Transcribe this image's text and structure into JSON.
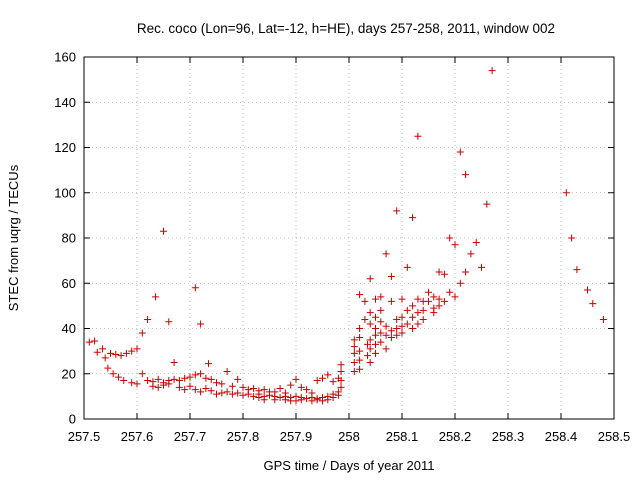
{
  "chart_data": {
    "type": "scatter",
    "title": "Rec. coco (Lon=96, Lat=-12, h=HE), days 257-258, 2011, window 002",
    "xlabel": "GPS time / Days of year 2011",
    "ylabel": "STEC from uqrg / TECUs",
    "xlim": [
      257.5,
      258.5
    ],
    "ylim": [
      0,
      160
    ],
    "xticks": [
      "257.5",
      "257.6",
      "257.7",
      "257.8",
      "257.9",
      "258",
      "258.1",
      "258.2",
      "258.3",
      "258.4",
      "258.5"
    ],
    "yticks": [
      "0",
      "20",
      "40",
      "60",
      "80",
      "100",
      "120",
      "140",
      "160"
    ],
    "marker": "plus",
    "color": "#cc0000",
    "grid": true,
    "points": [
      [
        257.51,
        34
      ],
      [
        257.52,
        34.5
      ],
      [
        257.525,
        29.5
      ],
      [
        257.535,
        31
      ],
      [
        257.54,
        27
      ],
      [
        257.55,
        29
      ],
      [
        257.56,
        28.5
      ],
      [
        257.57,
        28
      ],
      [
        257.58,
        29
      ],
      [
        257.59,
        30
      ],
      [
        257.6,
        31
      ],
      [
        257.61,
        38
      ],
      [
        257.62,
        44
      ],
      [
        257.635,
        54
      ],
      [
        257.65,
        83
      ],
      [
        257.66,
        43
      ],
      [
        257.67,
        25
      ],
      [
        257.72,
        42
      ],
      [
        257.71,
        58
      ],
      [
        257.735,
        24.5
      ],
      [
        257.545,
        22.5
      ],
      [
        257.555,
        20
      ],
      [
        257.565,
        18.5
      ],
      [
        257.575,
        17
      ],
      [
        257.59,
        16
      ],
      [
        257.6,
        15.5
      ],
      [
        257.61,
        20
      ],
      [
        257.62,
        17
      ],
      [
        257.63,
        16.5
      ],
      [
        257.64,
        17.5
      ],
      [
        257.65,
        16
      ],
      [
        257.66,
        17
      ],
      [
        257.67,
        17.5
      ],
      [
        257.68,
        17
      ],
      [
        257.69,
        18
      ],
      [
        257.7,
        18.5
      ],
      [
        257.71,
        19.5
      ],
      [
        257.72,
        20
      ],
      [
        257.73,
        18
      ],
      [
        257.74,
        17.5
      ],
      [
        257.75,
        16
      ],
      [
        257.76,
        15.5
      ],
      [
        257.77,
        21
      ],
      [
        257.78,
        14.5
      ],
      [
        257.79,
        17.5
      ],
      [
        257.8,
        14
      ],
      [
        257.81,
        13
      ],
      [
        257.82,
        13.5
      ],
      [
        257.83,
        12.5
      ],
      [
        257.84,
        13
      ],
      [
        257.85,
        12
      ],
      [
        257.86,
        12
      ],
      [
        257.87,
        13.5
      ],
      [
        257.88,
        11.5
      ],
      [
        257.89,
        15
      ],
      [
        257.9,
        17.5
      ],
      [
        257.91,
        14
      ],
      [
        257.92,
        13
      ],
      [
        257.93,
        11.5
      ],
      [
        257.94,
        17
      ],
      [
        257.95,
        18
      ],
      [
        257.96,
        19.5
      ],
      [
        257.97,
        16.5
      ],
      [
        257.98,
        18
      ],
      [
        257.63,
        14.5
      ],
      [
        257.64,
        14
      ],
      [
        257.65,
        15
      ],
      [
        257.66,
        15.5
      ],
      [
        257.68,
        14
      ],
      [
        257.69,
        13
      ],
      [
        257.7,
        14.5
      ],
      [
        257.71,
        13
      ],
      [
        257.72,
        12
      ],
      [
        257.73,
        13.5
      ],
      [
        257.74,
        12.5
      ],
      [
        257.75,
        11
      ],
      [
        257.76,
        11.5
      ],
      [
        257.77,
        12
      ],
      [
        257.78,
        11
      ],
      [
        257.79,
        11.5
      ],
      [
        257.8,
        10.5
      ],
      [
        257.81,
        11
      ],
      [
        257.82,
        10
      ],
      [
        257.83,
        11
      ],
      [
        257.84,
        10
      ],
      [
        257.85,
        10.5
      ],
      [
        257.86,
        10
      ],
      [
        257.87,
        9.5
      ],
      [
        257.88,
        10
      ],
      [
        257.89,
        9.5
      ],
      [
        257.9,
        10
      ],
      [
        257.91,
        9.5
      ],
      [
        257.92,
        9
      ],
      [
        257.93,
        9.5
      ],
      [
        257.94,
        9
      ],
      [
        257.95,
        9.5
      ],
      [
        257.96,
        10
      ],
      [
        257.97,
        11
      ],
      [
        257.98,
        12
      ],
      [
        257.83,
        9.5
      ],
      [
        257.84,
        8.5
      ],
      [
        257.86,
        8.5
      ],
      [
        257.88,
        8.5
      ],
      [
        257.89,
        8
      ],
      [
        257.9,
        8
      ],
      [
        257.91,
        8.5
      ],
      [
        257.93,
        8
      ],
      [
        257.94,
        8.5
      ],
      [
        257.95,
        8
      ],
      [
        257.96,
        8.5
      ],
      [
        257.97,
        9.5
      ],
      [
        257.98,
        10.5
      ],
      [
        257.985,
        14
      ],
      [
        257.985,
        17
      ],
      [
        257.985,
        21
      ],
      [
        257.985,
        24
      ],
      [
        258.01,
        35
      ],
      [
        258.01,
        32
      ],
      [
        258.01,
        29
      ],
      [
        258.01,
        25
      ],
      [
        258.01,
        21
      ],
      [
        258.02,
        55
      ],
      [
        258.02,
        40
      ],
      [
        258.02,
        36
      ],
      [
        258.02,
        30
      ],
      [
        258.02,
        26
      ],
      [
        258.02,
        22
      ],
      [
        258.03,
        44
      ],
      [
        258.03,
        52
      ],
      [
        258.035,
        33
      ],
      [
        258.035,
        28
      ],
      [
        258.04,
        62
      ],
      [
        258.04,
        47
      ],
      [
        258.04,
        42
      ],
      [
        258.04,
        35
      ],
      [
        258.04,
        31
      ],
      [
        258.04,
        25
      ],
      [
        258.05,
        53
      ],
      [
        258.05,
        45
      ],
      [
        258.05,
        40
      ],
      [
        258.05,
        37
      ],
      [
        258.05,
        33
      ],
      [
        258.05,
        29
      ],
      [
        258.06,
        54
      ],
      [
        258.06,
        48
      ],
      [
        258.06,
        43
      ],
      [
        258.06,
        38
      ],
      [
        258.06,
        34
      ],
      [
        258.07,
        73
      ],
      [
        258.07,
        41
      ],
      [
        258.07,
        37
      ],
      [
        258.07,
        31
      ],
      [
        258.08,
        63
      ],
      [
        258.08,
        52
      ],
      [
        258.08,
        39
      ],
      [
        258.08,
        36
      ],
      [
        258.09,
        92
      ],
      [
        258.09,
        44
      ],
      [
        258.09,
        40
      ],
      [
        258.09,
        37
      ],
      [
        258.1,
        53
      ],
      [
        258.1,
        45
      ],
      [
        258.1,
        41
      ],
      [
        258.1,
        38
      ],
      [
        258.11,
        67
      ],
      [
        258.11,
        48
      ],
      [
        258.11,
        42
      ],
      [
        258.12,
        89
      ],
      [
        258.12,
        50
      ],
      [
        258.12,
        45
      ],
      [
        258.12,
        40
      ],
      [
        258.13,
        125
      ],
      [
        258.13,
        53
      ],
      [
        258.13,
        47
      ],
      [
        258.13,
        42
      ],
      [
        258.14,
        52
      ],
      [
        258.14,
        48
      ],
      [
        258.14,
        44
      ],
      [
        258.15,
        56
      ],
      [
        258.15,
        52
      ],
      [
        258.16,
        54
      ],
      [
        258.16,
        49
      ],
      [
        258.16,
        47
      ],
      [
        258.17,
        65
      ],
      [
        258.17,
        53
      ],
      [
        258.17,
        50
      ],
      [
        258.18,
        64
      ],
      [
        258.18,
        52
      ],
      [
        258.19,
        80
      ],
      [
        258.19,
        56
      ],
      [
        258.2,
        77
      ],
      [
        258.2,
        54
      ],
      [
        258.21,
        118
      ],
      [
        258.21,
        60
      ],
      [
        258.22,
        108
      ],
      [
        258.22,
        65
      ],
      [
        258.23,
        73
      ],
      [
        258.24,
        78
      ],
      [
        258.25,
        67
      ],
      [
        258.26,
        95
      ],
      [
        258.27,
        154
      ],
      [
        258.41,
        100
      ],
      [
        258.42,
        80
      ],
      [
        258.43,
        66
      ],
      [
        258.45,
        57
      ],
      [
        258.46,
        51
      ],
      [
        258.48,
        44
      ]
    ]
  }
}
